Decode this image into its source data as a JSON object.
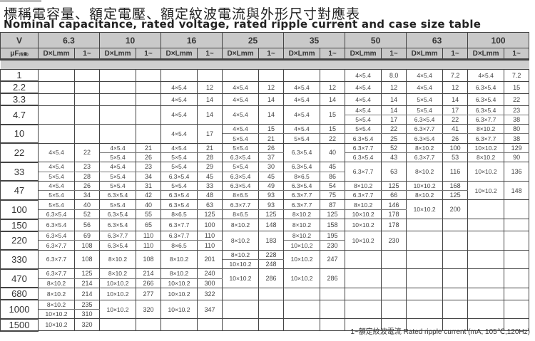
{
  "title_zh": "標稱電容量、額定電壓、額定紋波電流與外形尺寸對應表",
  "title_en": "Nominal capacitance, rated voltage, rated ripple current and case size table",
  "header": {
    "v_label": "V",
    "uf_label": "μF",
    "uf_note": "(容量)",
    "size_label": "D×Lmm",
    "ripple_label": "1~",
    "voltages": [
      "6.3",
      "10",
      "16",
      "25",
      "35",
      "50",
      "63",
      "100"
    ]
  },
  "rows": [
    {
      "cap": "1",
      "cells": [
        [],
        [],
        [],
        [],
        [],
        [
          [
            "4×5.4",
            "8.0"
          ]
        ],
        [
          [
            "4×5.4",
            "7.2"
          ]
        ],
        [
          [
            "4×5.4",
            "7.2"
          ]
        ]
      ]
    },
    {
      "cap": "2.2",
      "cells": [
        [],
        [],
        [
          [
            "4×5.4",
            "12"
          ]
        ],
        [
          [
            "4×5.4",
            "12"
          ]
        ],
        [
          [
            "4×5.4",
            "12"
          ]
        ],
        [
          [
            "4×5.4",
            "12"
          ]
        ],
        [
          [
            "4×5.4",
            "12"
          ]
        ],
        [
          [
            "6.3×5.4",
            "15"
          ]
        ]
      ]
    },
    {
      "cap": "3.3",
      "cells": [
        [],
        [],
        [
          [
            "4×5.4",
            "14"
          ]
        ],
        [
          [
            "4×5.4",
            "14"
          ]
        ],
        [
          [
            "4×5.4",
            "14"
          ]
        ],
        [
          [
            "4×5.4",
            "14"
          ]
        ],
        [
          [
            "5×5.4",
            "14"
          ]
        ],
        [
          [
            "6.3×5.4",
            "22"
          ]
        ]
      ]
    },
    {
      "cap": "4.7",
      "cells": [
        [],
        [],
        [
          [
            "4×5.4",
            "14"
          ]
        ],
        [
          [
            "4×5.4",
            "14"
          ]
        ],
        [
          [
            "4×5.4",
            "15"
          ]
        ],
        [
          [
            "4×5.4",
            "14"
          ],
          [
            "5×5.4",
            "17"
          ]
        ],
        [
          [
            "5×5.4",
            "17"
          ],
          [
            "6.3×5.4",
            "22"
          ]
        ],
        [
          [
            "6.3×5.4",
            "23"
          ],
          [
            "6.3×7.7",
            "38"
          ]
        ]
      ]
    },
    {
      "cap": "10",
      "cells": [
        [],
        [],
        [
          [
            "4×5.4",
            "17"
          ]
        ],
        [
          [
            "4×5.4",
            "15"
          ],
          [
            "5×5.4",
            "21"
          ]
        ],
        [
          [
            "4×5.4",
            "15"
          ],
          [
            "5×5.4",
            "22"
          ]
        ],
        [
          [
            "5×5.4",
            "22"
          ],
          [
            "6.3×5.4",
            "25"
          ]
        ],
        [
          [
            "6.3×7.7",
            "41"
          ],
          [
            "6.3×5.4",
            "26"
          ]
        ],
        [
          [
            "8×10.2",
            "80"
          ],
          [
            "6.3×7.7",
            "38"
          ]
        ]
      ]
    },
    {
      "cap": "22",
      "cells": [
        [
          [
            "4×5.4",
            "22"
          ]
        ],
        [
          [
            "4×5.4",
            "21"
          ],
          [
            "5×5.4",
            "26"
          ]
        ],
        [
          [
            "4×5.4",
            "21"
          ],
          [
            "5×5.4",
            "28"
          ]
        ],
        [
          [
            "5×5.4",
            "26"
          ],
          [
            "6.3×5.4",
            "37"
          ]
        ],
        [
          [
            "6.3×5.4",
            "40"
          ]
        ],
        [
          [
            "6.3×7.7",
            "52"
          ],
          [
            "6.3×5.4",
            "43"
          ]
        ],
        [
          [
            "8×10.2",
            "100"
          ],
          [
            "6.3×7.7",
            "53"
          ]
        ],
        [
          [
            "10×10.2",
            "129"
          ],
          [
            "8×10.2",
            "90"
          ]
        ]
      ]
    },
    {
      "cap": "33",
      "cells": [
        [
          [
            "4×5.4",
            "23"
          ],
          [
            "5×5.4",
            "28"
          ]
        ],
        [
          [
            "4×5.4",
            "23"
          ],
          [
            "5×5.4",
            "34"
          ]
        ],
        [
          [
            "5×5.4",
            "29"
          ],
          [
            "6.3×5.4",
            "45"
          ]
        ],
        [
          [
            "5×5.4",
            "30"
          ],
          [
            "6.3×5.4",
            "45"
          ]
        ],
        [
          [
            "6.3×5.4",
            "45"
          ],
          [
            "8×6.5",
            "86"
          ]
        ],
        [
          [
            "6.3×7.7",
            "63"
          ]
        ],
        [
          [
            "8×10.2",
            "116"
          ]
        ],
        [
          [
            "10×10.2",
            "136"
          ]
        ]
      ]
    },
    {
      "cap": "47",
      "cells": [
        [
          [
            "4×5.4",
            "26"
          ],
          [
            "5×5.4",
            "34"
          ]
        ],
        [
          [
            "5×5.4",
            "31"
          ],
          [
            "6.3×5.4",
            "42"
          ]
        ],
        [
          [
            "5×5.4",
            "33"
          ],
          [
            "6.3×5.4",
            "48"
          ]
        ],
        [
          [
            "6.3×5.4",
            "49"
          ],
          [
            "8×6.5",
            "93"
          ]
        ],
        [
          [
            "6.3×5.4",
            "54"
          ],
          [
            "6.3×7.7",
            "75"
          ]
        ],
        [
          [
            "8×10.2",
            "125"
          ],
          [
            "6.3×7.7",
            "66"
          ]
        ],
        [
          [
            "10×10.2",
            "168"
          ],
          [
            "8×10.2",
            "125"
          ]
        ],
        [
          [
            "10×10.2",
            "148"
          ]
        ]
      ]
    },
    {
      "cap": "100",
      "cells": [
        [
          [
            "5×5.4",
            "40"
          ],
          [
            "6.3×5.4",
            "52"
          ]
        ],
        [
          [
            "5×5.4",
            "40"
          ],
          [
            "6.3×5.4",
            "55"
          ]
        ],
        [
          [
            "6.3×5.4",
            "63"
          ],
          [
            "8×6.5",
            "125"
          ]
        ],
        [
          [
            "6.3×7.7",
            "93"
          ],
          [
            "8×6.5",
            "125"
          ]
        ],
        [
          [
            "6.3×7.7",
            "87"
          ],
          [
            "8×10.2",
            "125"
          ]
        ],
        [
          [
            "8×10.2",
            "146"
          ],
          [
            "10×10.2",
            "178"
          ]
        ],
        [
          [
            "10×10.2",
            "200"
          ]
        ],
        []
      ]
    },
    {
      "cap": "150",
      "cells": [
        [
          [
            "6.3×5.4",
            "56"
          ]
        ],
        [
          [
            "6.3×5.4",
            "65"
          ]
        ],
        [
          [
            "6.3×7.7",
            "100"
          ]
        ],
        [
          [
            "8×10.2",
            "148"
          ]
        ],
        [
          [
            "8×10.2",
            "158"
          ]
        ],
        [
          [
            "10×10.2",
            "178"
          ]
        ],
        [],
        []
      ]
    },
    {
      "cap": "220",
      "cells": [
        [
          [
            "6.3×5.4",
            "69"
          ],
          [
            "6.3×7.7",
            "108"
          ]
        ],
        [
          [
            "6.3×7.7",
            "110"
          ],
          [
            "6.3×5.4",
            "110"
          ]
        ],
        [
          [
            "6.3×7.7",
            "110"
          ],
          [
            "8×6.5",
            "110"
          ]
        ],
        [
          [
            "8×10.2",
            "183"
          ]
        ],
        [
          [
            "8×10.2",
            "195"
          ],
          [
            "10×10.2",
            "230"
          ]
        ],
        [
          [
            "10×10.2",
            "230"
          ]
        ],
        [],
        []
      ]
    },
    {
      "cap": "330",
      "cells": [
        [
          [
            "6.3×7.7",
            "108"
          ]
        ],
        [
          [
            "8×10.2",
            "108"
          ]
        ],
        [
          [
            "8×10.2",
            "201"
          ]
        ],
        [
          [
            "8×10.2",
            "228"
          ],
          [
            "10×10.2",
            "248"
          ]
        ],
        [
          [
            "10×10.2",
            "247"
          ]
        ],
        [],
        [],
        []
      ]
    },
    {
      "cap": "470",
      "cells": [
        [
          [
            "6.3×7.7",
            "125"
          ],
          [
            "8×10.2",
            "214"
          ]
        ],
        [
          [
            "8×10.2",
            "214"
          ],
          [
            "10×10.2",
            "266"
          ]
        ],
        [
          [
            "8×10.2",
            "240"
          ],
          [
            "10×10.2",
            "300"
          ]
        ],
        [
          [
            "10×10.2",
            "286"
          ]
        ],
        [
          [
            "10×10.2",
            "286"
          ]
        ],
        [],
        [],
        []
      ]
    },
    {
      "cap": "680",
      "cells": [
        [
          [
            "8×10.2",
            "214"
          ]
        ],
        [
          [
            "10×10.2",
            "277"
          ]
        ],
        [
          [
            "10×10.2",
            "322"
          ]
        ],
        [],
        [],
        [],
        [],
        []
      ]
    },
    {
      "cap": "1000",
      "cells": [
        [
          [
            "8×10.2",
            "235"
          ],
          [
            "10×10.2",
            "310"
          ]
        ],
        [
          [
            "10×10.2",
            "320"
          ]
        ],
        [
          [
            "10×10.2",
            "347"
          ]
        ],
        [],
        [],
        [],
        [],
        []
      ]
    },
    {
      "cap": "1500",
      "cells": [
        [
          [
            "10×10.2",
            "320"
          ]
        ],
        [],
        [],
        [],
        [],
        [],
        [],
        []
      ]
    }
  ],
  "footnote": "1~額定紋波電流 Rated ripple current (mA, 105℃,120Hz)"
}
